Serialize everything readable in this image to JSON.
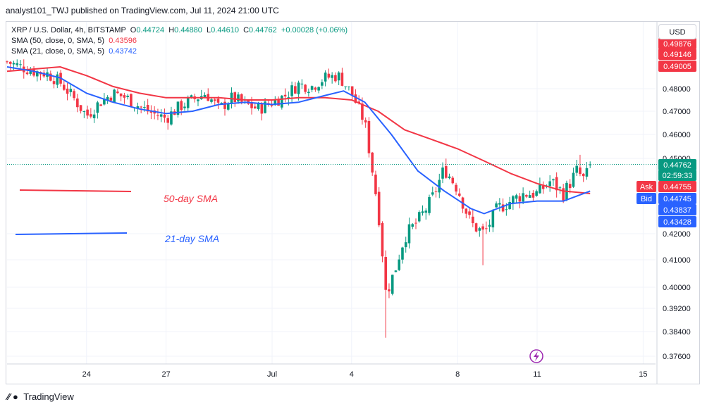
{
  "header": {
    "published_text": "analyst101_TWJ published on TradingView.com, Jul 11, 2024 21:00 UTC"
  },
  "legend": {
    "symbol": "XRP / U.S. Dollar, 4h, BITSTAMP",
    "o_label": "O",
    "o_value": "0.44724",
    "h_label": "H",
    "h_value": "0.44880",
    "l_label": "L",
    "l_value": "0.44610",
    "c_label": "C",
    "c_value": "0.44762",
    "change": "+0.00028 (+0.06%)",
    "sma50_label": "SMA (50, close, 0, SMA, 5)",
    "sma50_value": "0.43596",
    "sma21_label": "SMA (21, close, 0, SMA, 5)",
    "sma21_value": "0.43742"
  },
  "currency_button": "USD",
  "footer": {
    "brand": "TradingView"
  },
  "colors": {
    "up": "#089981",
    "down": "#f23645",
    "sma50": "#f23645",
    "sma21": "#2962ff",
    "grid": "#f0f3fa"
  },
  "chart_data": {
    "type": "candlestick",
    "title": "XRP / U.S. Dollar, 4h, BITSTAMP",
    "y_ticks": [
      "0.48000",
      "0.47000",
      "0.46000",
      "0.45000",
      "0.42000",
      "0.41000",
      "0.40000",
      "0.39200",
      "0.38400",
      "0.37600"
    ],
    "x_ticks": [
      "24",
      "27",
      "Jul",
      "4",
      "8",
      "11",
      "15"
    ],
    "price_labels": [
      {
        "text": "0.49876",
        "kind": "red",
        "value": 0.49876
      },
      {
        "text": "0.49146",
        "kind": "red",
        "value": 0.49146
      },
      {
        "text": "0.49005",
        "kind": "red",
        "value": 0.49005
      },
      {
        "text": "0.44762",
        "kind": "green",
        "value": 0.44762
      },
      {
        "text": "02:59:33",
        "kind": "green",
        "value": 0.4451
      },
      {
        "text": "Ask",
        "kind": "ask",
        "value": 0.44755
      },
      {
        "text": "0.44755",
        "kind": "red",
        "value": 0.44755
      },
      {
        "text": "Bid",
        "kind": "bid",
        "value": 0.44745
      },
      {
        "text": "0.44745",
        "kind": "blue",
        "value": 0.44745
      },
      {
        "text": "0.43837",
        "kind": "blue",
        "value": 0.43837
      },
      {
        "text": "0.43428",
        "kind": "blue",
        "value": 0.43428
      }
    ],
    "last_price": 0.44762,
    "annotations": [
      {
        "text": "50-day SMA",
        "color": "#f23645"
      },
      {
        "text": "21-day SMA",
        "color": "#2962ff"
      }
    ],
    "close_path": [
      {
        "d": 21,
        "c": 0.492
      },
      {
        "d": 21.5,
        "c": 0.49
      },
      {
        "d": 22,
        "c": 0.488
      },
      {
        "d": 22.5,
        "c": 0.487
      },
      {
        "d": 23,
        "c": 0.483
      },
      {
        "d": 23.5,
        "c": 0.476
      },
      {
        "d": 24,
        "c": 0.468
      },
      {
        "d": 24.5,
        "c": 0.474
      },
      {
        "d": 25,
        "c": 0.478
      },
      {
        "d": 25.5,
        "c": 0.476
      },
      {
        "d": 26,
        "c": 0.472
      },
      {
        "d": 26.5,
        "c": 0.469
      },
      {
        "d": 27,
        "c": 0.467
      },
      {
        "d": 27.5,
        "c": 0.472
      },
      {
        "d": 28,
        "c": 0.475
      },
      {
        "d": 28.5,
        "c": 0.478
      },
      {
        "d": 29,
        "c": 0.471
      },
      {
        "d": 29.5,
        "c": 0.476
      },
      {
        "d": 30,
        "c": 0.473
      },
      {
        "d": 30.5,
        "c": 0.471
      },
      {
        "d": 31,
        "c": 0.474
      },
      {
        "d": 31.5,
        "c": 0.477
      },
      {
        "d": 32,
        "c": 0.482
      },
      {
        "d": 32.5,
        "c": 0.481
      },
      {
        "d": 33,
        "c": 0.485
      },
      {
        "d": 33.5,
        "c": 0.486
      },
      {
        "d": 34,
        "c": 0.478
      },
      {
        "d": 34.5,
        "c": 0.465
      },
      {
        "d": 35,
        "c": 0.43
      },
      {
        "d": 35.3,
        "c": 0.398
      },
      {
        "d": 35.6,
        "c": 0.405
      },
      {
        "d": 36,
        "c": 0.419
      },
      {
        "d": 36.5,
        "c": 0.425
      },
      {
        "d": 37,
        "c": 0.433
      },
      {
        "d": 37.5,
        "c": 0.446
      },
      {
        "d": 38,
        "c": 0.438
      },
      {
        "d": 38.5,
        "c": 0.424
      },
      {
        "d": 39,
        "c": 0.42
      },
      {
        "d": 39.5,
        "c": 0.43
      },
      {
        "d": 40,
        "c": 0.433
      },
      {
        "d": 40.5,
        "c": 0.436
      },
      {
        "d": 41,
        "c": 0.436
      },
      {
        "d": 41.5,
        "c": 0.441
      },
      {
        "d": 42,
        "c": 0.436
      },
      {
        "d": 42.5,
        "c": 0.445
      },
      {
        "d": 42.8,
        "c": 0.441
      },
      {
        "d": 43,
        "c": 0.448
      }
    ],
    "sma21": [
      [
        21,
        0.49
      ],
      [
        22,
        0.488
      ],
      [
        23,
        0.485
      ],
      [
        24,
        0.478
      ],
      [
        25,
        0.474
      ],
      [
        26,
        0.471
      ],
      [
        27,
        0.469
      ],
      [
        28,
        0.47
      ],
      [
        29,
        0.473
      ],
      [
        30,
        0.474
      ],
      [
        31,
        0.473
      ],
      [
        32,
        0.474
      ],
      [
        33,
        0.477
      ],
      [
        33.7,
        0.479
      ],
      [
        34.5,
        0.474
      ],
      [
        35.5,
        0.46
      ],
      [
        36.5,
        0.445
      ],
      [
        37.5,
        0.437
      ],
      [
        38.5,
        0.43
      ],
      [
        39,
        0.428
      ],
      [
        40,
        0.432
      ],
      [
        41,
        0.433
      ],
      [
        42,
        0.433
      ],
      [
        43,
        0.437
      ]
    ],
    "sma50": [
      [
        21,
        0.488
      ],
      [
        22,
        0.489
      ],
      [
        23,
        0.49
      ],
      [
        24,
        0.486
      ],
      [
        25,
        0.481
      ],
      [
        26,
        0.478
      ],
      [
        27,
        0.476
      ],
      [
        28,
        0.476
      ],
      [
        29,
        0.476
      ],
      [
        30,
        0.475
      ],
      [
        31,
        0.475
      ],
      [
        32,
        0.476
      ],
      [
        33,
        0.476
      ],
      [
        34,
        0.475
      ],
      [
        35,
        0.47
      ],
      [
        36,
        0.462
      ],
      [
        37,
        0.458
      ],
      [
        38,
        0.454
      ],
      [
        39,
        0.449
      ],
      [
        40,
        0.444
      ],
      [
        41,
        0.44
      ],
      [
        42,
        0.437
      ],
      [
        43,
        0.436
      ]
    ]
  }
}
